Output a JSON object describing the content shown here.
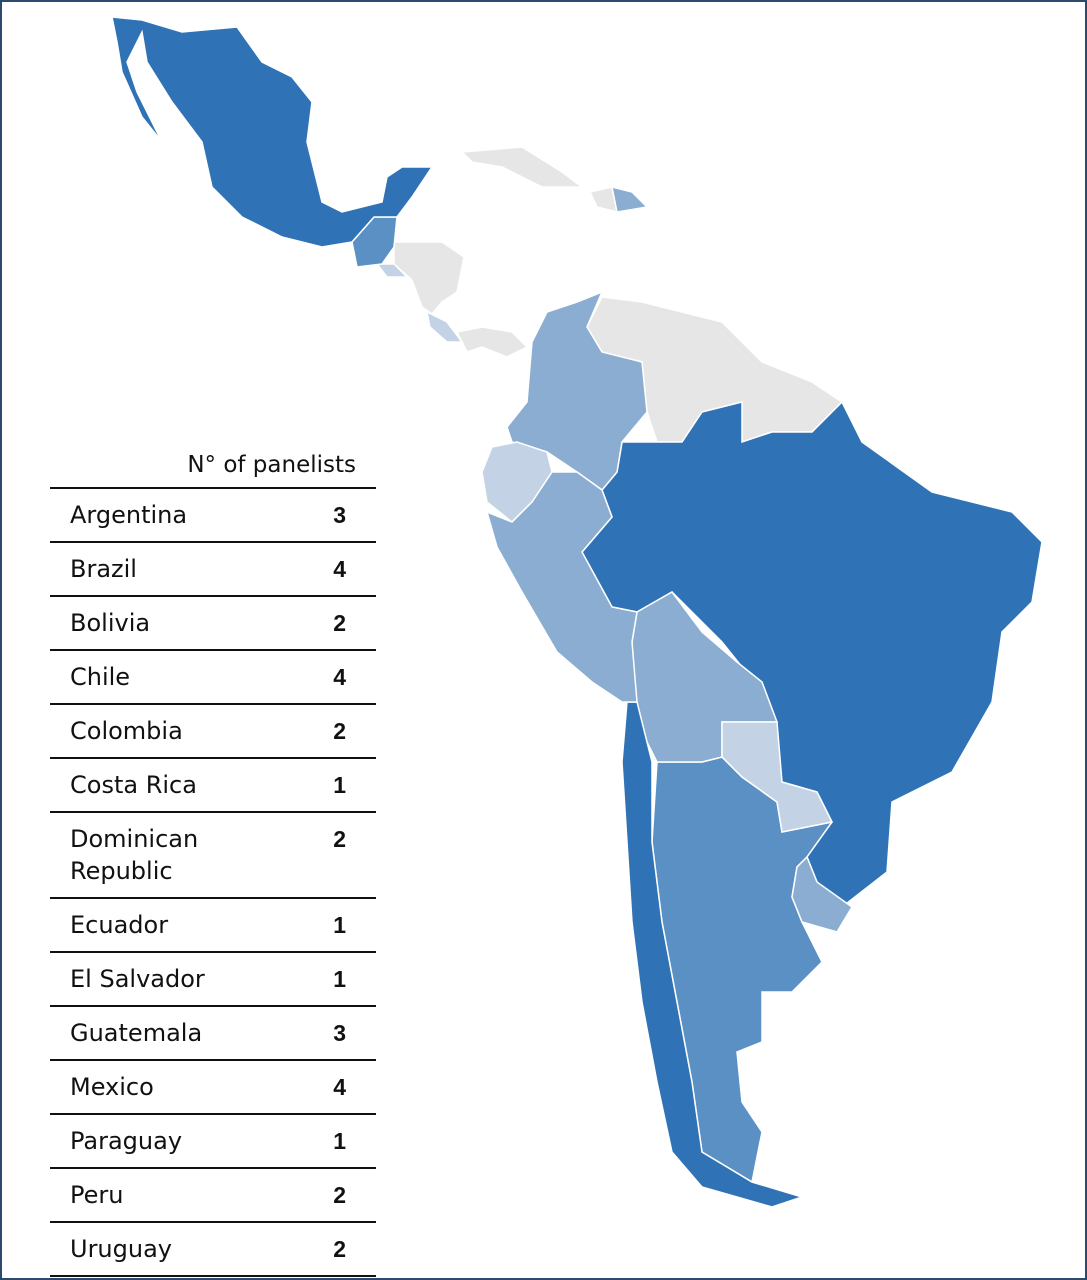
{
  "legend": {
    "title": "N° of panelists"
  },
  "color_scale": {
    "1": "#c3d3e5",
    "2": "#8aadd1",
    "3": "#5b90c4",
    "4": "#2f73b6"
  },
  "no_data_color": "#e6e6e6",
  "table": {
    "rows": [
      {
        "country": "Argentina",
        "panelists": 3
      },
      {
        "country": "Brazil",
        "panelists": 4
      },
      {
        "country": "Bolivia",
        "panelists": 2
      },
      {
        "country": "Chile",
        "panelists": 4
      },
      {
        "country": "Colombia",
        "panelists": 2
      },
      {
        "country": "Costa Rica",
        "panelists": 1
      },
      {
        "country": "Dominican Republic",
        "panelists": 2
      },
      {
        "country": "Ecuador",
        "panelists": 1
      },
      {
        "country": "El Salvador",
        "panelists": 1
      },
      {
        "country": "Guatemala",
        "panelists": 3
      },
      {
        "country": "Mexico",
        "panelists": 4
      },
      {
        "country": "Paraguay",
        "panelists": 1
      },
      {
        "country": "Peru",
        "panelists": 2
      },
      {
        "country": "Uruguay",
        "panelists": 2
      }
    ]
  }
}
